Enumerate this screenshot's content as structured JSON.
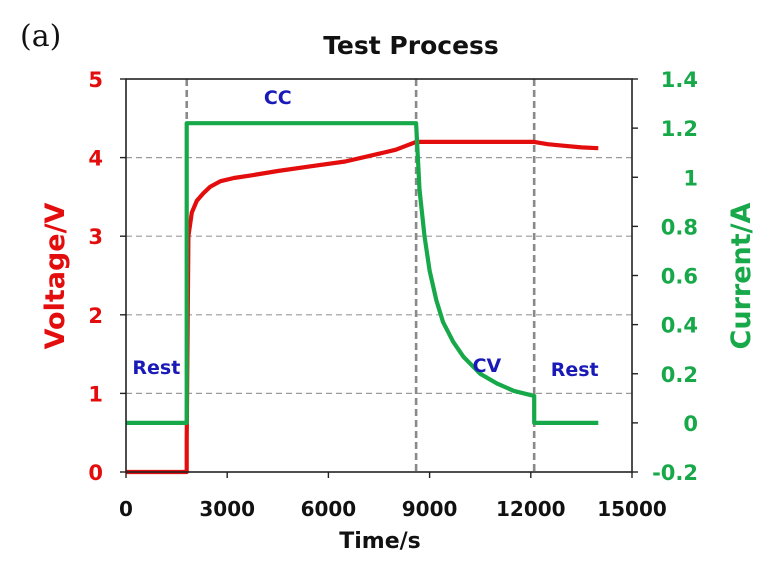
{
  "chart_data": {
    "type": "line",
    "panel_label": "(a)",
    "title": "Test Process",
    "xlabel": "Time/s",
    "ylabel_left": "Voltage/V",
    "ylabel_right": "Current/A",
    "xlim": [
      0,
      15000
    ],
    "ylim_left": [
      0,
      5
    ],
    "ylim_right": [
      -0.2,
      1.4
    ],
    "x_ticks": [
      "0",
      "3000",
      "6000",
      "9000",
      "12000",
      "15000"
    ],
    "y_ticks_left": [
      "0",
      "1",
      "2",
      "3",
      "4",
      "5"
    ],
    "y_ticks_right": [
      "-0.2",
      "0",
      "0.2",
      "0.4",
      "0.6",
      "0.8",
      "1",
      "1.2",
      "1.4"
    ],
    "grid": "horizontal dashed",
    "phase_boundaries": [
      1800,
      8600,
      12100
    ],
    "annotations": [
      {
        "text": "CC",
        "x": 4500,
        "y_left": 4.68
      },
      {
        "text": "Rest",
        "x": 900,
        "y_left": 1.25
      },
      {
        "text": "CV",
        "x": 10700,
        "y_left": 1.27
      },
      {
        "text": "Rest",
        "x": 13300,
        "y_left": 1.22
      }
    ],
    "series": [
      {
        "axis": "left",
        "color": "#e30d0d",
        "x": [
          0,
          1800,
          1800,
          1850,
          1950,
          2100,
          2300,
          2500,
          2800,
          3200,
          3800,
          4500,
          5500,
          6500,
          7500,
          8000,
          8600,
          9000,
          10000,
          11000,
          12000,
          12100,
          12500,
          13000,
          13500,
          14000
        ],
        "values": [
          0,
          0,
          0.4,
          3.0,
          3.3,
          3.45,
          3.55,
          3.63,
          3.7,
          3.74,
          3.78,
          3.83,
          3.89,
          3.95,
          4.05,
          4.1,
          4.2,
          4.2,
          4.2,
          4.2,
          4.2,
          4.2,
          4.17,
          4.15,
          4.13,
          4.12
        ]
      },
      {
        "axis": "right",
        "color": "#17a84a",
        "x": [
          0,
          1800,
          1800,
          8600,
          8600,
          8700,
          8850,
          9000,
          9200,
          9400,
          9700,
          10000,
          10500,
          11000,
          11500,
          12100,
          12100,
          14000
        ],
        "values": [
          0,
          0,
          1.22,
          1.22,
          1.22,
          0.95,
          0.76,
          0.62,
          0.5,
          0.41,
          0.33,
          0.27,
          0.2,
          0.16,
          0.13,
          0.11,
          0,
          0
        ]
      }
    ]
  }
}
